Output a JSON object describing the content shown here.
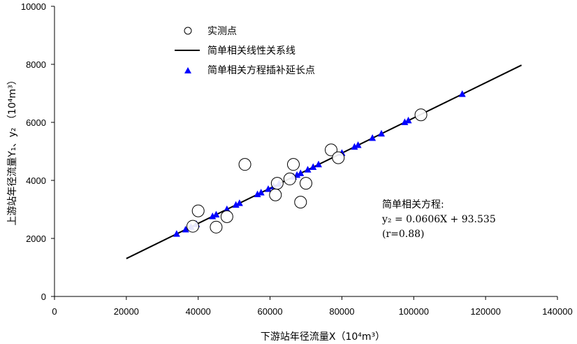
{
  "chart_data": {
    "type": "scatter",
    "xlabel": "下游站年径流量X（10⁴m³）",
    "ylabel": "上游站年径流量Y₁、y₂ （10⁴m³）",
    "xlim": [
      0,
      140000
    ],
    "ylim": [
      0,
      10000
    ],
    "xticks": [
      "0",
      "20000",
      "40000",
      "60000",
      "80000",
      "100000",
      "120000",
      "140000"
    ],
    "yticks": [
      "0",
      "2000",
      "4000",
      "6000",
      "8000",
      "10000"
    ],
    "grid": false,
    "legend_position": "top-left",
    "annotation": {
      "title": "简单相关方程:",
      "equation": "y₂ = 0.0606X + 93.535",
      "r": "(r=0.88)"
    },
    "series": [
      {
        "name": "实测点",
        "marker": "open-circle",
        "color": "#000000",
        "points": [
          [
            38500,
            2420
          ],
          [
            40000,
            2950
          ],
          [
            45000,
            2390
          ],
          [
            48000,
            2750
          ],
          [
            53000,
            4550
          ],
          [
            61500,
            3500
          ],
          [
            62000,
            3900
          ],
          [
            65500,
            4050
          ],
          [
            66500,
            4550
          ],
          [
            68500,
            3250
          ],
          [
            70000,
            3900
          ],
          [
            77000,
            5050
          ],
          [
            79000,
            4780
          ],
          [
            102000,
            6260
          ]
        ]
      },
      {
        "name": "简单相关线性关系线",
        "marker": "line",
        "color": "#000000",
        "points": [
          [
            20000,
            1306
          ],
          [
            130000,
            7971
          ]
        ]
      },
      {
        "name": "简单相关方程插补延长点",
        "marker": "filled-triangle",
        "color": "#0000ff",
        "points": [
          [
            34000,
            2154
          ],
          [
            36500,
            2305
          ],
          [
            38000,
            2396
          ],
          [
            39500,
            2487
          ],
          [
            44000,
            2760
          ],
          [
            45000,
            2820
          ],
          [
            48000,
            3002
          ],
          [
            50500,
            3154
          ],
          [
            51500,
            3214
          ],
          [
            56500,
            3517
          ],
          [
            57500,
            3578
          ],
          [
            59500,
            3699
          ],
          [
            61000,
            3790
          ],
          [
            62500,
            3881
          ],
          [
            66500,
            4123
          ],
          [
            67500,
            4184
          ],
          [
            68500,
            4245
          ],
          [
            70500,
            4366
          ],
          [
            72000,
            4457
          ],
          [
            73500,
            4548
          ],
          [
            80000,
            4942
          ],
          [
            83500,
            5154
          ],
          [
            84500,
            5214
          ],
          [
            88500,
            5457
          ],
          [
            91000,
            5608
          ],
          [
            97500,
            6002
          ],
          [
            98500,
            6063
          ],
          [
            113500,
            6972
          ]
        ]
      }
    ]
  }
}
